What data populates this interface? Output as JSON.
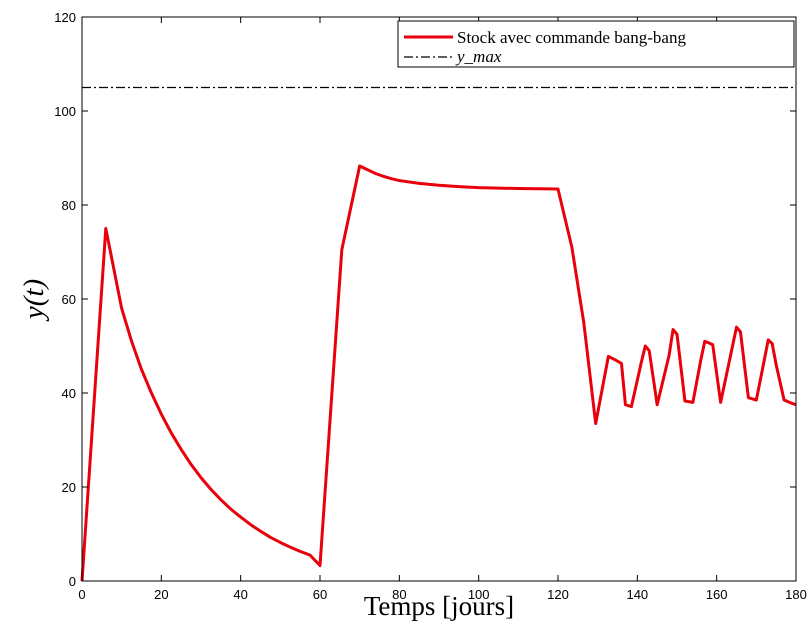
{
  "chart_data": {
    "type": "line",
    "xlabel": "Temps [jours]",
    "ylabel": "y(t)",
    "xlim": [
      0,
      180
    ],
    "ylim": [
      0,
      120
    ],
    "x_ticks": [
      "0",
      "20",
      "40",
      "60",
      "80",
      "100",
      "120",
      "140",
      "160",
      "180"
    ],
    "y_ticks": [
      "0",
      "20",
      "40",
      "60",
      "80",
      "100",
      "120"
    ],
    "grid": false,
    "legend_position": "top-right",
    "series": [
      {
        "name": "Stock avec commande bang-bang",
        "color": "#e8000b",
        "style": "solid",
        "x": [
          0,
          6,
          10,
          12.5,
          15,
          17.5,
          20,
          22.5,
          25,
          27.5,
          30,
          32.5,
          35,
          37.5,
          40,
          42.5,
          45,
          47.5,
          50,
          52.5,
          55,
          57.5,
          60,
          65.5,
          70,
          72,
          74,
          76,
          78,
          80,
          85,
          90,
          95,
          100,
          105,
          110,
          115,
          120,
          123.5,
          126.5,
          129.5,
          132.7,
          134.5,
          136,
          137,
          138.5,
          141,
          142,
          143,
          145,
          148,
          149,
          150,
          152,
          154,
          156,
          157,
          159,
          161,
          163,
          165,
          166,
          168,
          170,
          172,
          173,
          174,
          175,
          177,
          179,
          180
        ],
        "y": [
          0,
          75,
          58,
          51,
          45,
          40,
          35.5,
          31.5,
          28,
          24.8,
          22,
          19.5,
          17.3,
          15.3,
          13.6,
          12,
          10.6,
          9.3,
          8.2,
          7.2,
          6.3,
          5.5,
          3.3,
          70.5,
          88.3,
          87.5,
          86.7,
          86.1,
          85.6,
          85.2,
          84.6,
          84.2,
          83.9,
          83.7,
          83.6,
          83.5,
          83.45,
          83.4,
          71,
          55,
          33.5,
          47.8,
          47,
          46.3,
          37.5,
          37.1,
          46.5,
          50,
          49,
          37.5,
          48,
          53.5,
          52.5,
          38.3,
          38,
          47,
          51,
          50.3,
          38,
          46,
          54,
          53,
          39,
          38.5,
          47,
          51.3,
          50.5,
          46,
          38.5,
          37.8,
          37.5
        ]
      },
      {
        "name": "y_max",
        "color": "#000000",
        "style": "dashdot",
        "x": [
          0,
          180
        ],
        "y": [
          105,
          105
        ]
      }
    ]
  }
}
